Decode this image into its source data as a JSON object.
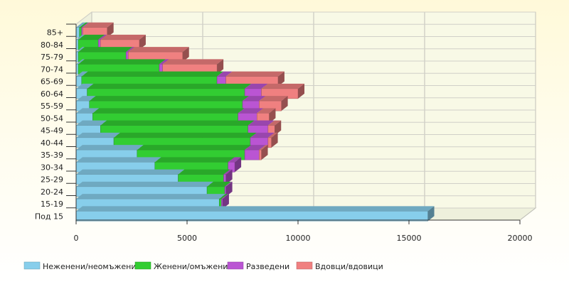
{
  "chart_data": {
    "type": "bar",
    "orientation": "horizontal",
    "stacked": true,
    "style": "3d",
    "categories": [
      "85+",
      "80-84",
      "75-79",
      "70-74",
      "65-69",
      "60-64",
      "55-59",
      "50-54",
      "45-49",
      "40-44",
      "35-39",
      "30-34",
      "25-29",
      "20-24",
      "15-19",
      "Под 15"
    ],
    "series": [
      {
        "name": "Неженени/неомъжени",
        "color": "#87ceeb",
        "values": [
          150,
          100,
          100,
          100,
          250,
          500,
          600,
          750,
          1100,
          1700,
          2750,
          3550,
          4600,
          5900,
          6450,
          15850
        ]
      },
      {
        "name": "Женени/омъжени",
        "color": "#32cd32",
        "values": [
          100,
          900,
          2150,
          3650,
          6100,
          7100,
          6900,
          6550,
          6650,
          6150,
          4850,
          3300,
          2050,
          800,
          100,
          0
        ]
      },
      {
        "name": "Разведени",
        "color": "#ba55d3",
        "values": [
          50,
          100,
          100,
          150,
          400,
          750,
          750,
          850,
          900,
          800,
          650,
          300,
          100,
          50,
          50,
          0
        ]
      },
      {
        "name": "Вдовци/вдовици",
        "color": "#f08080",
        "values": [
          1100,
          1750,
          2450,
          2450,
          2350,
          1650,
          1000,
          550,
          300,
          150,
          100,
          0,
          0,
          0,
          0,
          0
        ]
      }
    ],
    "x_ticks": [
      "0",
      "5000",
      "10000",
      "15000",
      "20000"
    ],
    "xlim": [
      0,
      20000
    ],
    "grid": true,
    "legend_position": "bottom"
  }
}
